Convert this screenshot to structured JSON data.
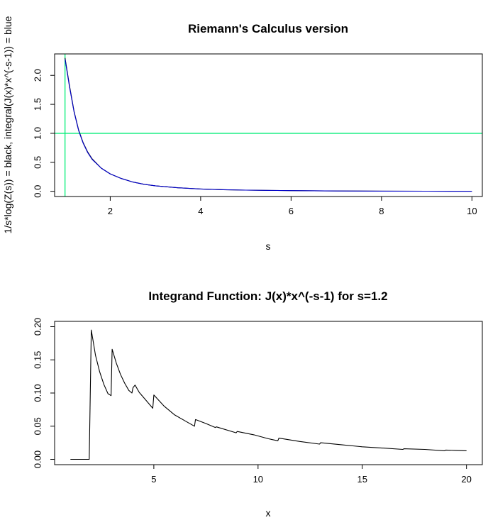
{
  "chart_data": [
    {
      "type": "line",
      "title": "Riemann's Calculus version",
      "xlabel": "s",
      "ylabel": "1/s*log(Z(s)) = black, integral(J(x)*x^(-s-1)) = blue",
      "xlim": [
        0.77,
        10.23
      ],
      "ylim": [
        -0.09,
        2.37
      ],
      "xticks": [
        "2",
        "4",
        "6",
        "8",
        "10"
      ],
      "yticks": [
        "0.0",
        "0.5",
        "1.0",
        "1.5",
        "2.0"
      ],
      "grid": false,
      "series": [
        {
          "color": "#000000",
          "x": [
            1.0,
            1.1,
            1.2,
            1.3,
            1.4,
            1.5,
            1.6,
            1.8,
            2.0,
            2.25,
            2.5,
            2.75,
            3.0,
            3.5,
            4.0,
            4.5,
            5.0,
            6.0,
            7.0,
            8.0,
            9.0,
            10.0
          ],
          "y": [
            2.3,
            1.82,
            1.38,
            1.06,
            0.84,
            0.68,
            0.56,
            0.4,
            0.3,
            0.22,
            0.16,
            0.12,
            0.095,
            0.06,
            0.04,
            0.028,
            0.02,
            0.011,
            0.006,
            0.003,
            0.0015,
            0.0008
          ]
        },
        {
          "color": "#0000cd",
          "x": [
            1.0,
            1.1,
            1.2,
            1.3,
            1.4,
            1.5,
            1.6,
            1.8,
            2.0,
            2.25,
            2.5,
            2.75,
            3.0,
            3.5,
            4.0,
            4.5,
            5.0,
            6.0,
            7.0,
            8.0,
            9.0,
            10.0
          ],
          "y": [
            2.28,
            1.8,
            1.37,
            1.05,
            0.83,
            0.67,
            0.55,
            0.4,
            0.3,
            0.22,
            0.16,
            0.12,
            0.095,
            0.06,
            0.04,
            0.028,
            0.02,
            0.011,
            0.006,
            0.003,
            0.0015,
            0.0008
          ]
        }
      ],
      "reference_lines": [
        {
          "orientation": "horizontal",
          "value": 1.0,
          "color": "#00ee76"
        },
        {
          "orientation": "vertical",
          "value": 1.0,
          "color": "#00ee76"
        }
      ]
    },
    {
      "type": "line",
      "title": "Integrand Function: J(x)*x^(-s-1) for s=1.2",
      "xlabel": "x",
      "ylabel": "",
      "xlim": [
        0.24,
        20.76
      ],
      "ylim": [
        -0.008,
        0.208
      ],
      "xticks": [
        "5",
        "10",
        "15",
        "20"
      ],
      "yticks": [
        "0.00",
        "0.05",
        "0.10",
        "0.15",
        "0.20"
      ],
      "grid": false,
      "series": [
        {
          "color": "#000000",
          "x": [
            1.0,
            1.9,
            2.0,
            2.2,
            2.4,
            2.6,
            2.8,
            2.95,
            3.0,
            3.2,
            3.4,
            3.6,
            3.8,
            3.95,
            4.0,
            4.1,
            4.3,
            4.6,
            4.95,
            5.0,
            5.5,
            6.0,
            6.5,
            6.95,
            7.0,
            7.5,
            7.95,
            8.0,
            8.95,
            9.0,
            9.8,
            10.5,
            10.95,
            11.0,
            12.0,
            12.95,
            13.0,
            14.0,
            15.0,
            15.95,
            16.0,
            16.95,
            17.0,
            18.0,
            18.95,
            19.0,
            19.5,
            20.0
          ],
          "y": [
            0.0,
            0.0,
            0.195,
            0.157,
            0.132,
            0.113,
            0.099,
            0.096,
            0.166,
            0.145,
            0.128,
            0.115,
            0.104,
            0.1,
            0.108,
            0.112,
            0.101,
            0.09,
            0.077,
            0.097,
            0.08,
            0.067,
            0.058,
            0.05,
            0.06,
            0.054,
            0.048,
            0.049,
            0.04,
            0.042,
            0.037,
            0.031,
            0.028,
            0.032,
            0.027,
            0.023,
            0.025,
            0.022,
            0.019,
            0.017,
            0.017,
            0.015,
            0.016,
            0.015,
            0.013,
            0.014,
            0.0135,
            0.013
          ]
        }
      ]
    }
  ]
}
